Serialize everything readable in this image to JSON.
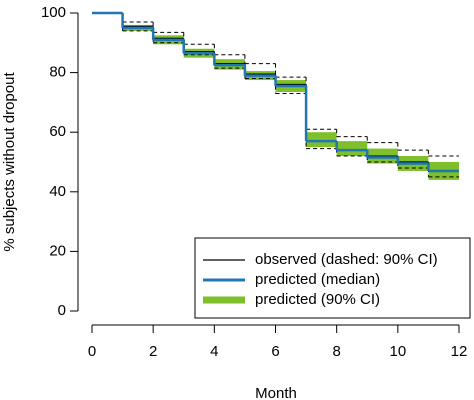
{
  "chart_data": {
    "type": "step",
    "x_label": "Month",
    "y_label": "% subjects without dropout",
    "x": [
      0,
      1,
      2,
      3,
      4,
      5,
      6,
      7,
      8,
      9,
      10,
      11
    ],
    "xlim": [
      0,
      12
    ],
    "xticks": [
      0,
      2,
      4,
      6,
      8,
      10,
      12
    ],
    "ylim": [
      0,
      100
    ],
    "yticks": [
      0,
      20,
      40,
      60,
      80,
      100
    ],
    "legend_position": "bottom-right",
    "series": [
      {
        "name": "predicted (90% CI)",
        "color": "#7fbf2a",
        "kind": "band",
        "lower": [
          100,
          94,
          89.5,
          85,
          81,
          77.5,
          73.5,
          55,
          52,
          49.5,
          47,
          44
        ],
        "upper": [
          100,
          96,
          92.5,
          88,
          84.5,
          80.5,
          77.5,
          60,
          57,
          54.5,
          52,
          50
        ]
      },
      {
        "name": "observed (dashed: 90% CI)",
        "color": "#000000",
        "kind": "line",
        "values": [
          100,
          95.5,
          91.5,
          87,
          83,
          79.5,
          76,
          57,
          54,
          52,
          50,
          47
        ],
        "ci_lower": [
          100,
          94,
          90,
          86,
          81.5,
          78,
          73,
          54.5,
          52,
          50,
          48,
          45
        ],
        "ci_upper": [
          100,
          97,
          93.5,
          89.5,
          86,
          83,
          78.5,
          61,
          58.5,
          56.5,
          54,
          52
        ]
      },
      {
        "name": "predicted (median)",
        "color": "#1f77b4",
        "kind": "line",
        "values": [
          100,
          95,
          91,
          86.5,
          82.5,
          79,
          75.5,
          57,
          54,
          51.5,
          49.5,
          47
        ]
      }
    ]
  }
}
